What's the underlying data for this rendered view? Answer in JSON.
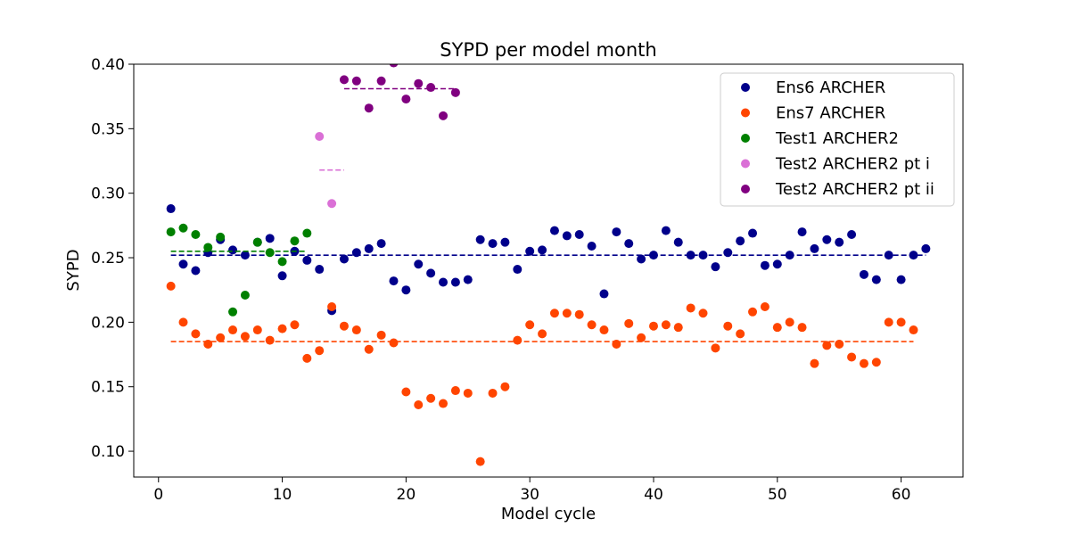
{
  "chart_data": {
    "type": "scatter",
    "title": "SYPD per model month",
    "xlabel": "Model cycle",
    "ylabel": "SYPD",
    "xlim": [
      -2,
      65
    ],
    "ylim": [
      0.08,
      0.4
    ],
    "xticks": [
      0,
      10,
      20,
      30,
      40,
      50,
      60
    ],
    "yticks": [
      0.1,
      0.15,
      0.2,
      0.25,
      0.3,
      0.35,
      0.4
    ],
    "xtick_labels": [
      "0",
      "10",
      "20",
      "30",
      "40",
      "50",
      "60"
    ],
    "ytick_labels": [
      "0.10",
      "0.15",
      "0.20",
      "0.25",
      "0.30",
      "0.35",
      "0.40"
    ],
    "grid": false,
    "legend_position": "upper-right",
    "series": [
      {
        "name": "Ens6 ARCHER",
        "color": "#00008b",
        "x": [
          1,
          2,
          3,
          4,
          5,
          6,
          7,
          8,
          9,
          10,
          11,
          12,
          13,
          14,
          15,
          16,
          17,
          18,
          19,
          20,
          21,
          22,
          23,
          24,
          25,
          26,
          27,
          28,
          29,
          30,
          31,
          32,
          33,
          34,
          35,
          36,
          37,
          38,
          39,
          40,
          41,
          42,
          43,
          44,
          45,
          46,
          47,
          48,
          49,
          50,
          51,
          52,
          53,
          54,
          55,
          56,
          57,
          58,
          59,
          60,
          61,
          62
        ],
        "y": [
          0.288,
          0.245,
          0.24,
          0.254,
          0.264,
          0.256,
          0.252,
          0.262,
          0.265,
          0.236,
          0.255,
          0.248,
          0.241,
          0.209,
          0.249,
          0.254,
          0.257,
          0.261,
          0.232,
          0.225,
          0.245,
          0.238,
          0.231,
          0.231,
          0.233,
          0.264,
          0.261,
          0.262,
          0.241,
          0.255,
          0.256,
          0.271,
          0.267,
          0.268,
          0.259,
          0.222,
          0.27,
          0.261,
          0.249,
          0.252,
          0.271,
          0.262,
          0.252,
          0.252,
          0.243,
          0.254,
          0.263,
          0.269,
          0.244,
          0.245,
          0.252,
          0.27,
          0.257,
          0.264,
          0.262,
          0.268,
          0.237,
          0.233,
          0.252,
          0.233,
          0.252,
          0.257
        ],
        "mean": 0.252,
        "mean_x_range": [
          1,
          62
        ]
      },
      {
        "name": "Ens7 ARCHER",
        "color": "#ff4500",
        "x": [
          1,
          2,
          3,
          4,
          5,
          6,
          7,
          8,
          9,
          10,
          11,
          12,
          13,
          14,
          15,
          16,
          17,
          18,
          19,
          20,
          21,
          22,
          23,
          24,
          25,
          26,
          27,
          28,
          29,
          30,
          31,
          32,
          33,
          34,
          35,
          36,
          37,
          38,
          39,
          40,
          41,
          42,
          43,
          44,
          45,
          46,
          47,
          48,
          49,
          50,
          51,
          52,
          53,
          54,
          55,
          56,
          57,
          58,
          59,
          60,
          61
        ],
        "y": [
          0.228,
          0.2,
          0.191,
          0.183,
          0.188,
          0.194,
          0.189,
          0.194,
          0.186,
          0.195,
          0.198,
          0.172,
          0.178,
          0.212,
          0.197,
          0.194,
          0.179,
          0.19,
          0.184,
          0.146,
          0.136,
          0.141,
          0.137,
          0.147,
          0.145,
          0.092,
          0.145,
          0.15,
          0.186,
          0.198,
          0.191,
          0.207,
          0.207,
          0.206,
          0.198,
          0.194,
          0.183,
          0.199,
          0.188,
          0.197,
          0.198,
          0.196,
          0.211,
          0.207,
          0.18,
          0.197,
          0.191,
          0.208,
          0.212,
          0.196,
          0.2,
          0.196,
          0.168,
          0.182,
          0.183,
          0.173,
          0.168,
          0.169,
          0.2,
          0.2,
          0.194
        ],
        "mean": 0.185,
        "mean_x_range": [
          1,
          61
        ]
      },
      {
        "name": "Test1 ARCHER2",
        "color": "#008000",
        "x": [
          1,
          2,
          3,
          4,
          5,
          6,
          7,
          8,
          9,
          10,
          11,
          12
        ],
        "y": [
          0.27,
          0.273,
          0.268,
          0.258,
          0.266,
          0.208,
          0.221,
          0.262,
          0.254,
          0.247,
          0.263,
          0.269
        ],
        "mean": 0.255,
        "mean_x_range": [
          1,
          12
        ]
      },
      {
        "name": "Test2 ARCHER2 pt i",
        "color": "#da70d6",
        "x": [
          13,
          14
        ],
        "y": [
          0.344,
          0.292
        ],
        "mean": 0.318,
        "mean_x_range": [
          13,
          15
        ]
      },
      {
        "name": "Test2 ARCHER2 pt ii",
        "color": "#800080",
        "x": [
          15,
          16,
          17,
          18,
          19,
          20,
          21,
          22,
          23,
          24
        ],
        "y": [
          0.388,
          0.387,
          0.366,
          0.387,
          0.401,
          0.373,
          0.385,
          0.382,
          0.36,
          0.378
        ],
        "mean": 0.381,
        "mean_x_range": [
          15,
          24
        ]
      }
    ]
  }
}
